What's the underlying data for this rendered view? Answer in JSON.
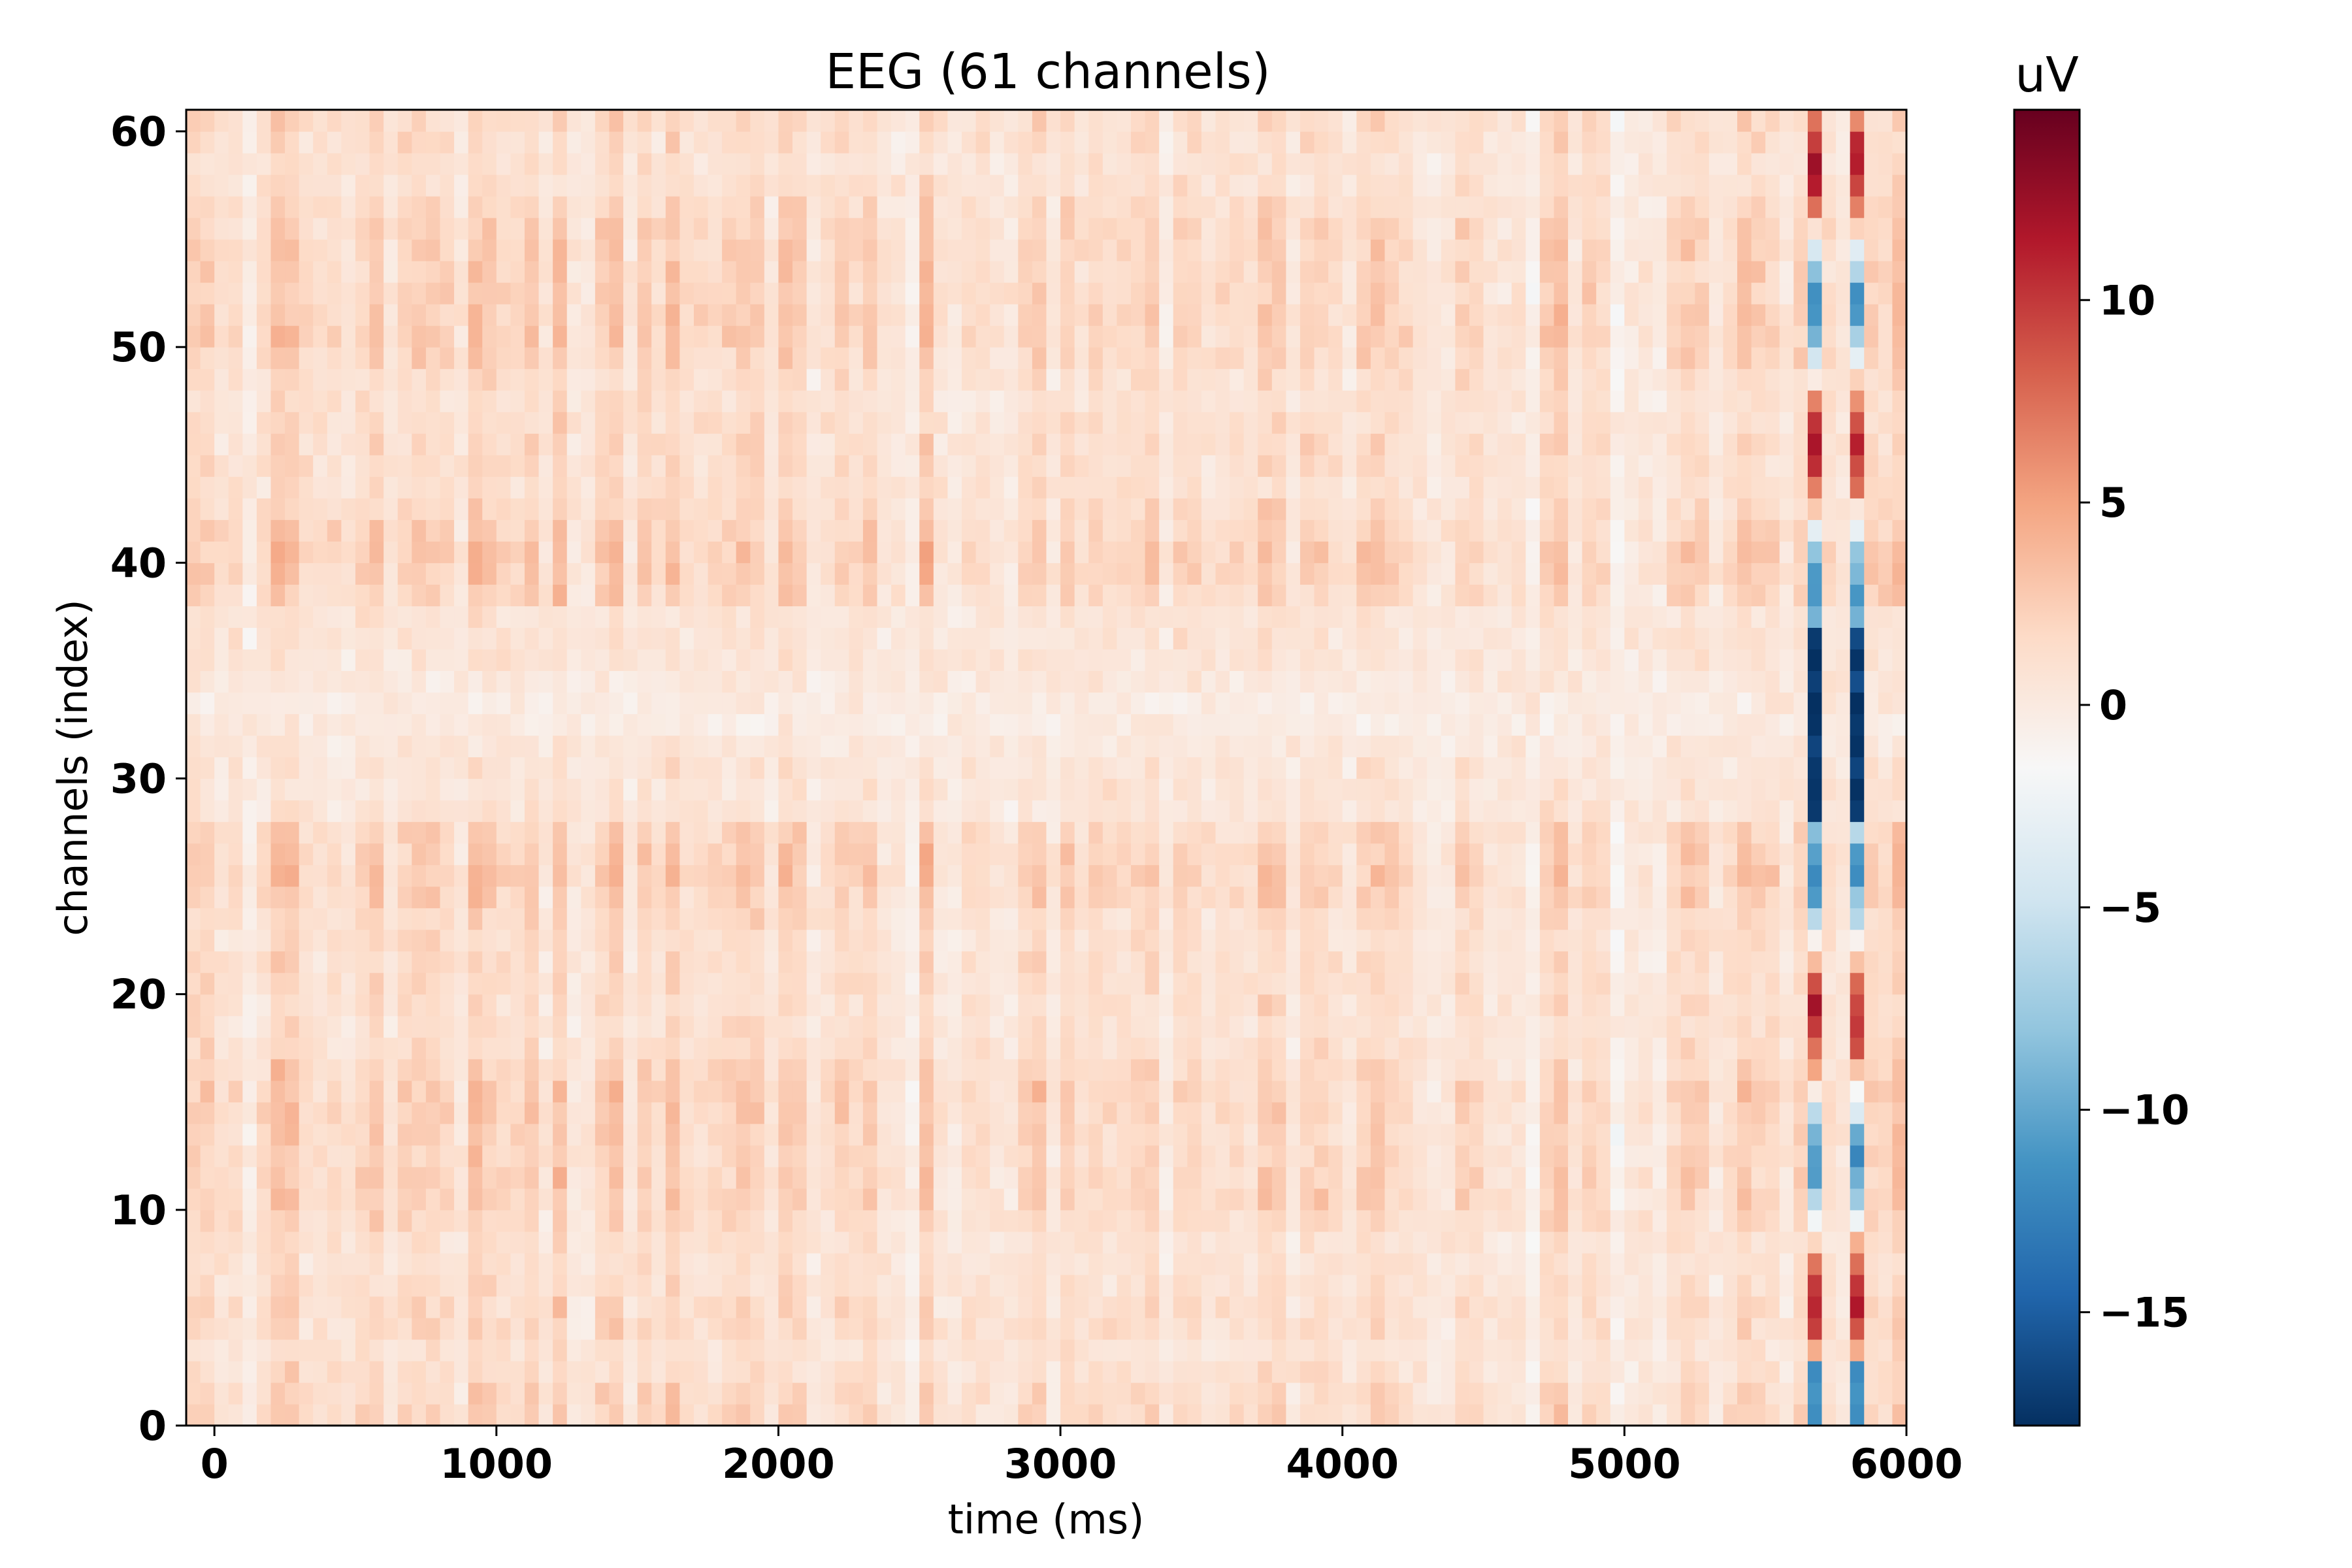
{
  "chart_data": {
    "type": "heatmap",
    "title": "EEG (61 channels)",
    "xlabel": "time (ms)",
    "ylabel": "channels (index)",
    "xlim": [
      -100,
      6000
    ],
    "ylim": [
      0,
      61
    ],
    "x_ticks": [
      0,
      1000,
      2000,
      3000,
      4000,
      5000,
      6000
    ],
    "y_ticks": [
      0,
      10,
      20,
      30,
      40,
      50,
      60
    ],
    "x_tick_labels": [
      "0",
      "1000",
      "2000",
      "3000",
      "4000",
      "5000",
      "6000"
    ],
    "y_tick_labels": [
      "0",
      "10",
      "20",
      "30",
      "40",
      "50",
      "60"
    ],
    "n_channels": 61,
    "n_timepoints": 122,
    "time_step_ms": 50,
    "colormap": "RdBu_r",
    "vmin": -17.8,
    "vmax": 14.7,
    "colorbar": {
      "label": "uV",
      "ticks": [
        -15,
        -10,
        -5,
        0,
        5,
        10
      ],
      "tick_labels": [
        "−15",
        "−10",
        "−5",
        "0",
        "5",
        "10"
      ]
    },
    "grid": false,
    "artifact_columns_ms": [
      5650,
      5800
    ],
    "colors": {
      "cmap_stops": [
        "#053061",
        "#2166ac",
        "#4393c3",
        "#92c5de",
        "#d1e5f0",
        "#f7f7f7",
        "#fddbc7",
        "#f4a582",
        "#d6604d",
        "#b2182b",
        "#67001f"
      ]
    }
  }
}
